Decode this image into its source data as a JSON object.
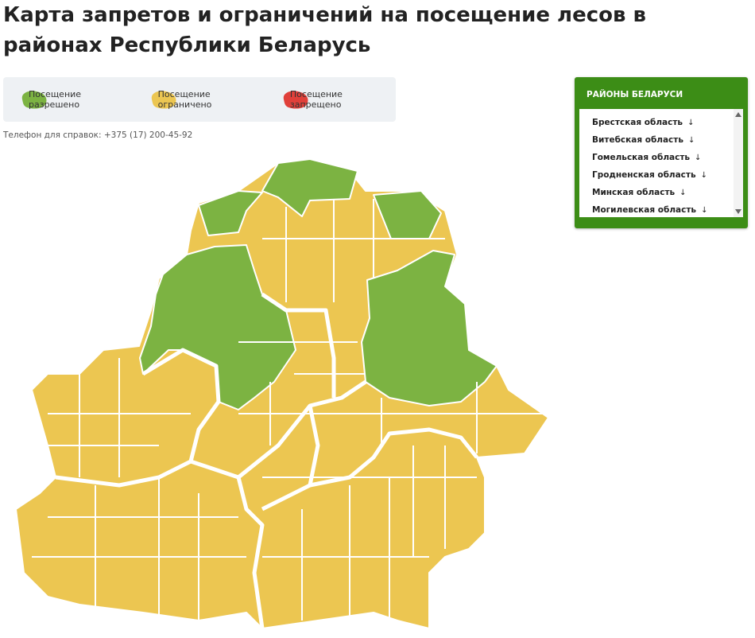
{
  "header": {
    "title": "Карта запретов и ограничений на посещение лесов в районах Республики Беларусь"
  },
  "legend": [
    {
      "label": "Посещение разрешено",
      "color": "#7cb342"
    },
    {
      "label": "Посещение ограничено",
      "color": "#ecc651"
    },
    {
      "label": "Посещение запрещено",
      "color": "#e0403a"
    }
  ],
  "contact": {
    "label": "Телефон для справок:",
    "phone": "+375 (17) 200-45-92"
  },
  "sidebar": {
    "title": "РАЙОНЫ БЕЛАРУСИ",
    "items": [
      "Брестская область",
      "Витебская область",
      "Гомельская область",
      "Гродненская область",
      "Минская область",
      "Могилевская область"
    ]
  }
}
